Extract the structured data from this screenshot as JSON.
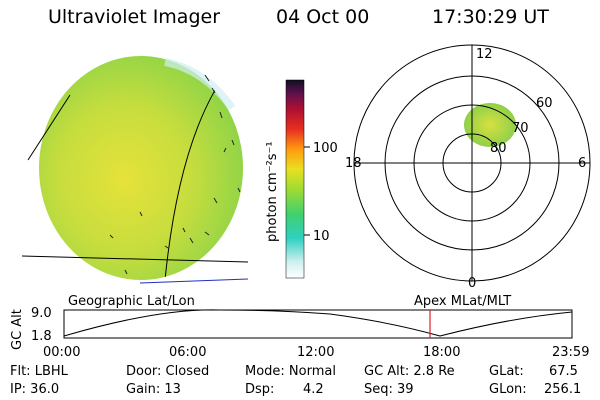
{
  "header": {
    "instrument": "Ultraviolet Imager",
    "date": "04 Oct 00",
    "time": "17:30:29 UT"
  },
  "colorbar": {
    "unit_label": "photon cm⁻²s⁻¹",
    "ticks": [
      "100",
      "10"
    ]
  },
  "polar_plot": {
    "clock_labels": [
      "12",
      "18",
      "6",
      "0"
    ],
    "lat_labels": [
      "60",
      "70",
      "80"
    ]
  },
  "map_titles": {
    "left": "Geographic Lat/Lon",
    "right": "Apex MLat/MLT"
  },
  "orbit_plot": {
    "ylabel": "GC Alt",
    "y_ticks": [
      "9.0",
      "1.8"
    ],
    "x_ticks": [
      "00:00",
      "06:00",
      "12:00",
      "18:00",
      "23:59"
    ],
    "marker_time": "17:30:29"
  },
  "status": {
    "flt": "Flt: LBHL",
    "ip": "IP: 36.0",
    "door": "Door: Closed",
    "gain": "Gain: 13",
    "mode": "Mode: Normal",
    "dsp_label": "Dsp:",
    "dsp_value": "4.2",
    "gc_alt": "GC Alt: 2.8 Re",
    "seq": "Seq: 39",
    "glat_label": "GLat:",
    "glat_value": "67.5",
    "glon_label": "GLon:",
    "glon_value": "256.1"
  },
  "colors": {
    "earth_disk": "#a8d83a",
    "oval": "#c8e050",
    "marker": "#e02020"
  }
}
